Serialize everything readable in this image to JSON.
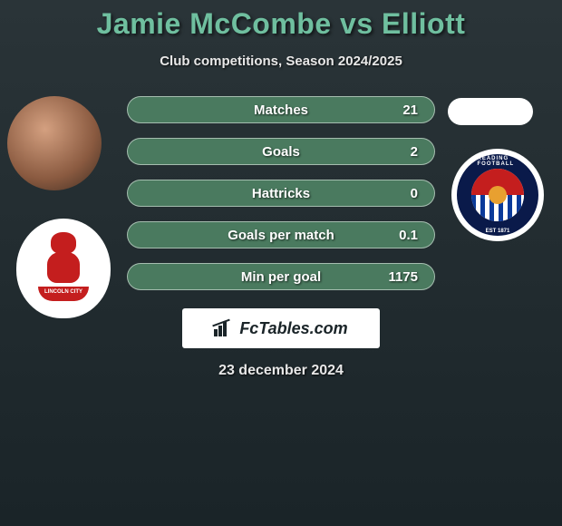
{
  "title": "Jamie McCombe vs Elliott",
  "subtitle": "Club competitions, Season 2024/2025",
  "date": "23 december 2024",
  "brand": "FcTables.com",
  "colors": {
    "title_color": "#6fbf9f",
    "pill_bg": "#4a7a5f",
    "page_bg_top": "#2a3438",
    "page_bg_bottom": "#1a2428",
    "text_light": "#e8e8e8"
  },
  "left_club_text": "LINCOLN CITY",
  "right_club_ring_top": "READING FOOTBALL",
  "right_club_ring_bot": "EST 1871",
  "stats": [
    {
      "label": "Matches",
      "right_value": "21"
    },
    {
      "label": "Goals",
      "right_value": "2"
    },
    {
      "label": "Hattricks",
      "right_value": "0"
    },
    {
      "label": "Goals per match",
      "right_value": "0.1"
    },
    {
      "label": "Min per goal",
      "right_value": "1175"
    }
  ],
  "styling": {
    "title_fontsize": 32,
    "subtitle_fontsize": 15,
    "pill_height": 30,
    "pill_radius": 15,
    "pill_gap": 16,
    "pill_width": 340,
    "stat_fontsize": 15,
    "date_fontsize": 16,
    "logo_box_width": 218,
    "logo_box_height": 44
  }
}
